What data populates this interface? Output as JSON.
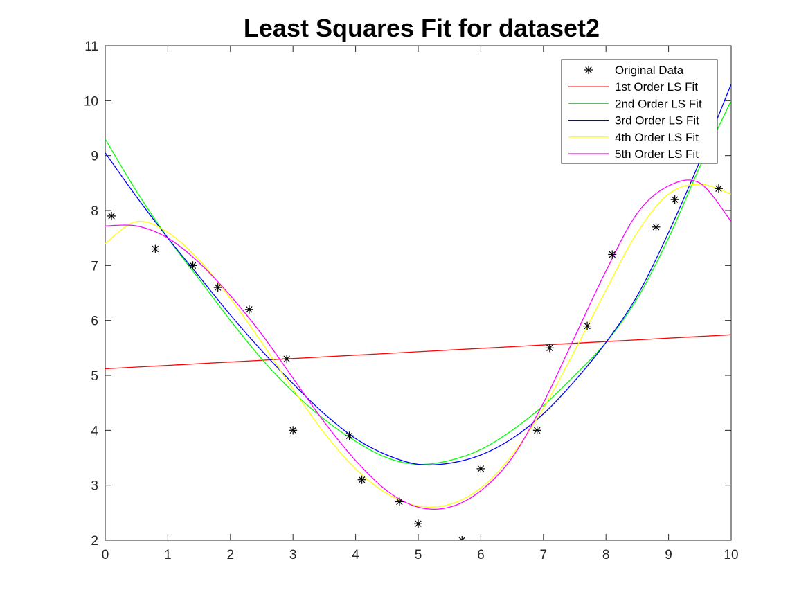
{
  "chart_data": {
    "type": "line",
    "title": "Least Squares Fit for dataset2",
    "xlabel": "",
    "ylabel": "",
    "xlim": [
      0,
      10
    ],
    "ylim": [
      2,
      11
    ],
    "xticks": [
      0,
      1,
      2,
      3,
      4,
      5,
      6,
      7,
      8,
      9,
      10
    ],
    "yticks": [
      2,
      3,
      4,
      5,
      6,
      7,
      8,
      9,
      10,
      11
    ],
    "grid": false,
    "legend_position": "top-right",
    "series": [
      {
        "name": "Original Data",
        "style": "markers",
        "marker": "asterisk",
        "color": "#000000",
        "x": [
          0.1,
          0.8,
          1.4,
          1.8,
          2.3,
          2.9,
          3.0,
          3.9,
          4.1,
          4.7,
          5.0,
          5.7,
          6.0,
          6.9,
          7.1,
          7.7,
          8.1,
          8.8,
          9.1,
          9.8
        ],
        "y": [
          7.9,
          7.3,
          7.0,
          6.6,
          6.2,
          5.3,
          4.0,
          3.9,
          3.1,
          2.7,
          2.3,
          2.0,
          3.3,
          4.0,
          5.5,
          5.9,
          7.2,
          7.7,
          8.2,
          8.4
        ]
      },
      {
        "name": "1st Order LS Fit",
        "style": "line",
        "color": "#ff0000",
        "x": [
          0,
          10
        ],
        "y": [
          5.12,
          5.74
        ]
      },
      {
        "name": "2nd Order LS Fit",
        "style": "line",
        "color": "#00ff00",
        "x": [
          0,
          0.5,
          1,
          1.5,
          2,
          2.5,
          3,
          3.5,
          4,
          4.5,
          5,
          5.5,
          6,
          6.5,
          7,
          7.5,
          8,
          8.5,
          9,
          9.5,
          10
        ],
        "y": [
          9.3,
          8.35,
          7.5,
          6.75,
          6.0,
          5.3,
          4.7,
          4.2,
          3.8,
          3.5,
          3.38,
          3.45,
          3.65,
          4.0,
          4.45,
          5.0,
          5.6,
          6.4,
          7.5,
          8.8,
          10.0
        ]
      },
      {
        "name": "3rd Order LS Fit",
        "style": "line",
        "color": "#0000ff",
        "x": [
          0,
          0.5,
          1,
          1.5,
          2,
          2.5,
          3,
          3.5,
          4,
          4.5,
          5,
          5.5,
          6,
          6.5,
          7,
          7.5,
          8,
          8.5,
          9,
          9.5,
          10
        ],
        "y": [
          9.05,
          8.25,
          7.5,
          6.8,
          6.1,
          5.45,
          4.85,
          4.3,
          3.85,
          3.55,
          3.38,
          3.4,
          3.55,
          3.85,
          4.3,
          4.9,
          5.6,
          6.45,
          7.6,
          8.9,
          10.3
        ]
      },
      {
        "name": "4th Order LS Fit",
        "style": "line",
        "color": "#ffff00",
        "x": [
          0,
          0.5,
          1,
          1.5,
          2,
          2.5,
          3,
          3.5,
          4,
          4.5,
          5,
          5.5,
          6,
          6.5,
          7,
          7.5,
          8,
          8.5,
          9,
          9.5,
          10
        ],
        "y": [
          7.4,
          7.8,
          7.6,
          7.1,
          6.4,
          5.6,
          4.75,
          3.95,
          3.3,
          2.85,
          2.62,
          2.65,
          2.95,
          3.55,
          4.4,
          5.45,
          6.55,
          7.6,
          8.3,
          8.48,
          8.3
        ]
      },
      {
        "name": "5th Order LS Fit",
        "style": "line",
        "color": "#ff00ff",
        "x": [
          0,
          0.5,
          1,
          1.5,
          2,
          2.5,
          3,
          3.5,
          4,
          4.5,
          5,
          5.5,
          6,
          6.5,
          7,
          7.5,
          8,
          8.5,
          9,
          9.5,
          10
        ],
        "y": [
          7.72,
          7.72,
          7.5,
          7.05,
          6.45,
          5.75,
          4.95,
          4.15,
          3.45,
          2.9,
          2.6,
          2.6,
          2.9,
          3.5,
          4.5,
          5.7,
          6.9,
          7.95,
          8.45,
          8.5,
          7.8
        ]
      }
    ]
  }
}
